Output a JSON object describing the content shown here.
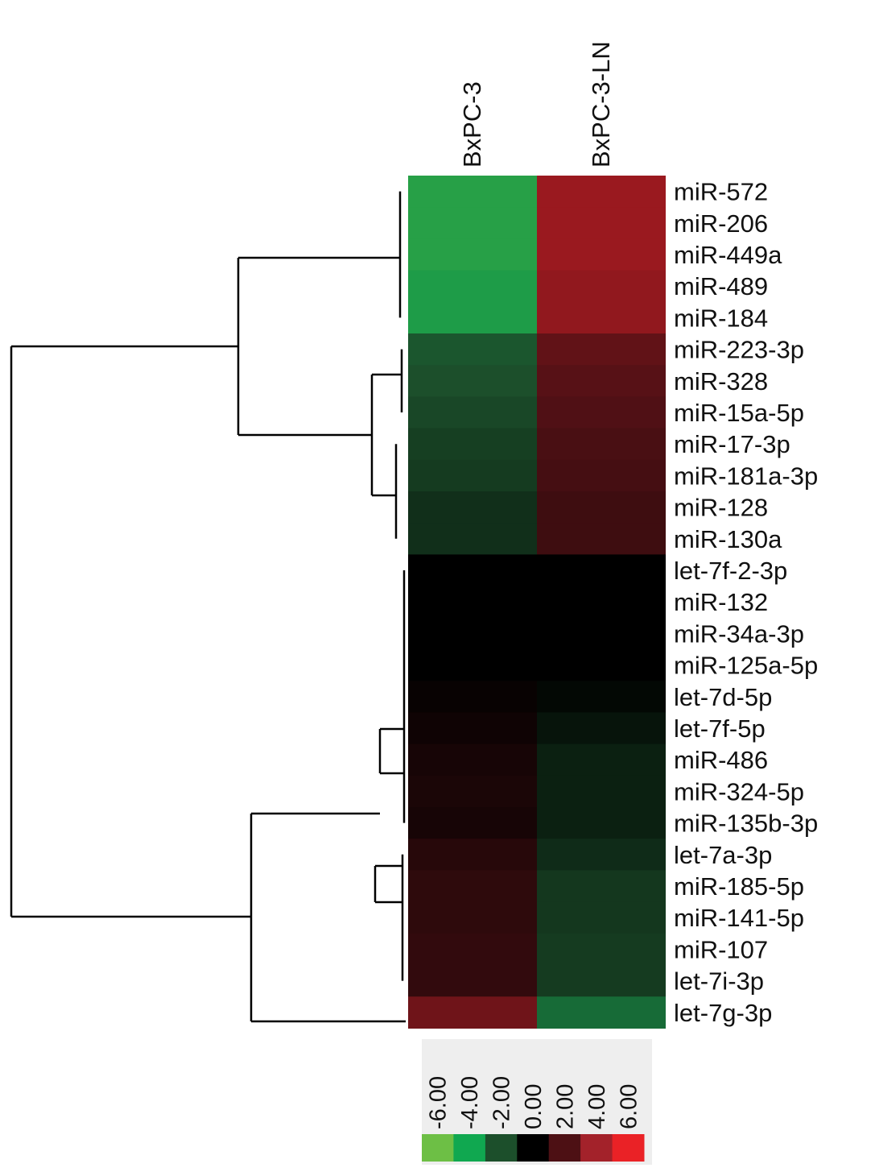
{
  "chart_data": {
    "type": "heatmap",
    "columns": [
      "BxPC-3",
      "BxPC-3-LN"
    ],
    "rows": [
      "miR-572",
      "miR-206",
      "miR-449a",
      "miR-489",
      "miR-184",
      "miR-223-3p",
      "miR-328",
      "miR-15a-5p",
      "miR-17-3p",
      "miR-181a-3p",
      "miR-128",
      "miR-130a",
      "let-7f-2-3p",
      "miR-132",
      "miR-34a-3p",
      "miR-125a-5p",
      "let-7d-5p",
      "let-7f-5p",
      "miR-486",
      "miR-324-5p",
      "miR-135b-3p",
      "let-7a-3p",
      "miR-185-5p",
      "miR-141-5p",
      "miR-107",
      "let-7i-3p",
      "let-7g-3p"
    ],
    "values": [
      [
        -4.5,
        4.2
      ],
      [
        -4.5,
        4.2
      ],
      [
        -4.5,
        4.2
      ],
      [
        -4.3,
        4.0
      ],
      [
        -4.3,
        4.0
      ],
      [
        -2.2,
        2.6
      ],
      [
        -2.0,
        2.3
      ],
      [
        -1.8,
        2.1
      ],
      [
        -1.6,
        1.9
      ],
      [
        -1.5,
        1.8
      ],
      [
        -1.2,
        1.6
      ],
      [
        -1.2,
        1.6
      ],
      [
        0.0,
        0.0
      ],
      [
        0.0,
        0.0
      ],
      [
        0.0,
        0.0
      ],
      [
        0.0,
        0.0
      ],
      [
        0.2,
        -0.2
      ],
      [
        0.4,
        -0.5
      ],
      [
        0.6,
        -0.8
      ],
      [
        0.7,
        -0.8
      ],
      [
        0.6,
        -0.8
      ],
      [
        1.0,
        -1.1
      ],
      [
        1.2,
        -1.4
      ],
      [
        1.2,
        -1.4
      ],
      [
        1.3,
        -1.5
      ],
      [
        1.3,
        -1.5
      ],
      [
        3.0,
        -2.8
      ]
    ],
    "scale": {
      "ticks": [
        "-6.00",
        "-4.00",
        "-2.00",
        "0.00",
        "2.00",
        "4.00",
        "6.00"
      ],
      "colors": [
        "#6dbf45",
        "#10a850",
        "#1c4f2b",
        "#000000",
        "#4d1014",
        "#a3222a",
        "#ea2226"
      ]
    },
    "grid": false,
    "legend": "bottom"
  }
}
